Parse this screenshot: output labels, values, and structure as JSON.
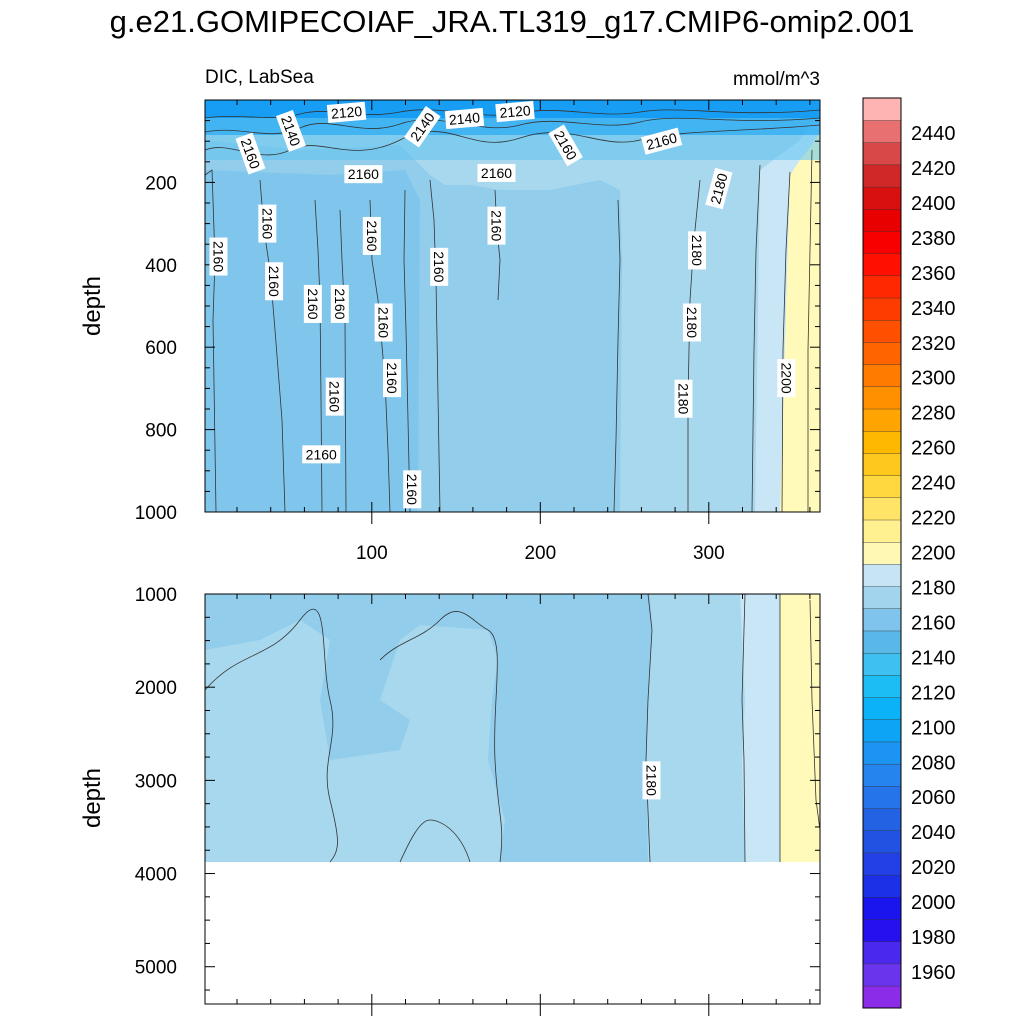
{
  "title": "g.e21.GOMIPECOIAF_JRA.TL319_g17.CMIP6-omip2.001",
  "chart_data": {
    "type": "contour",
    "variable_label": "DIC, LabSea",
    "units_label": "mmol/m^3",
    "x_ticks": [
      100,
      200,
      300
    ],
    "xlim": [
      1,
      366
    ],
    "panels": [
      {
        "ylabel": "depth",
        "ylim": [
          1000,
          0
        ],
        "y_ticks": [
          200,
          400,
          600,
          800,
          1000
        ],
        "contour_labels": [
          {
            "text": "2120",
            "x": 85,
            "y": 30,
            "angle": -5
          },
          {
            "text": "2140",
            "x": 52,
            "y": 75,
            "angle": 70
          },
          {
            "text": "2120",
            "x": 185,
            "y": 28,
            "angle": -5
          },
          {
            "text": "2140",
            "x": 130,
            "y": 65,
            "angle": -55
          },
          {
            "text": "2140",
            "x": 155,
            "y": 45,
            "angle": -5
          },
          {
            "text": "2160",
            "x": 28,
            "y": 130,
            "angle": 70
          },
          {
            "text": "2160",
            "x": 215,
            "y": 110,
            "angle": 60
          },
          {
            "text": "2160",
            "x": 272,
            "y": 100,
            "angle": -15
          },
          {
            "text": "2160",
            "x": 95,
            "y": 180,
            "angle": 0
          },
          {
            "text": "2160",
            "x": 174,
            "y": 177,
            "angle": 0
          },
          {
            "text": "2180",
            "x": 306,
            "y": 215,
            "angle": -75
          },
          {
            "text": "2160",
            "x": 38,
            "y": 300,
            "angle": 90
          },
          {
            "text": "2160",
            "x": 100,
            "y": 330,
            "angle": 90
          },
          {
            "text": "2160",
            "x": 174,
            "y": 305,
            "angle": 90
          },
          {
            "text": "2160",
            "x": 9,
            "y": 380,
            "angle": 90
          },
          {
            "text": "2160",
            "x": 42,
            "y": 440,
            "angle": 90
          },
          {
            "text": "2160",
            "x": 140,
            "y": 405,
            "angle": 90
          },
          {
            "text": "2180",
            "x": 293,
            "y": 365,
            "angle": 90
          },
          {
            "text": "2160",
            "x": 65,
            "y": 495,
            "angle": 90
          },
          {
            "text": "2160",
            "x": 81,
            "y": 495,
            "angle": 90
          },
          {
            "text": "2160",
            "x": 107,
            "y": 540,
            "angle": 90
          },
          {
            "text": "2180",
            "x": 290,
            "y": 540,
            "angle": 90
          },
          {
            "text": "2160",
            "x": 112,
            "y": 675,
            "angle": 90
          },
          {
            "text": "2200",
            "x": 346,
            "y": 675,
            "angle": 90
          },
          {
            "text": "2160",
            "x": 78,
            "y": 720,
            "angle": 90
          },
          {
            "text": "2180",
            "x": 285,
            "y": 725,
            "angle": 90
          },
          {
            "text": "2160",
            "x": 70,
            "y": 860,
            "angle": 0
          },
          {
            "text": "2160",
            "x": 124,
            "y": 945,
            "angle": 90
          }
        ]
      },
      {
        "ylabel": "depth",
        "ylim": [
          5400,
          1000
        ],
        "y_ticks": [
          1000,
          2000,
          3000,
          4000,
          5000
        ],
        "data_bottom_depth": 3870,
        "contour_labels": [
          {
            "text": "2180",
            "x": 266,
            "y": 3000,
            "angle": 90
          }
        ]
      }
    ],
    "colorbar": {
      "labels": [
        1960,
        1980,
        2000,
        2020,
        2040,
        2060,
        2080,
        2100,
        2120,
        2140,
        2160,
        2180,
        2200,
        2220,
        2240,
        2260,
        2280,
        2300,
        2320,
        2340,
        2360,
        2380,
        2400,
        2420,
        2440
      ],
      "colors": [
        "#8b2ce8",
        "#6a34ec",
        "#4a28ee",
        "#2610f0",
        "#1a14ee",
        "#1c30e8",
        "#2240e6",
        "#2252e2",
        "#2462e4",
        "#2674ea",
        "#2684ee",
        "#1c94f2",
        "#0ea4f6",
        "#0cb2f8",
        "#1cbdf4",
        "#3ec1f0",
        "#5ab8e8",
        "#7ec4ec",
        "#a2d4ee",
        "#c6e4f4",
        "#fff8b4",
        "#fff090",
        "#ffe468",
        "#ffd840",
        "#ffc81c",
        "#ffb800",
        "#ffa400",
        "#ff9000",
        "#ff7c00",
        "#ff6400",
        "#ff5000",
        "#ff3c00",
        "#ff2800",
        "#ff1000",
        "#f80000",
        "#e80000",
        "#d81010",
        "#d02828",
        "#d84848",
        "#e87070",
        "#ffb4b4"
      ]
    }
  }
}
